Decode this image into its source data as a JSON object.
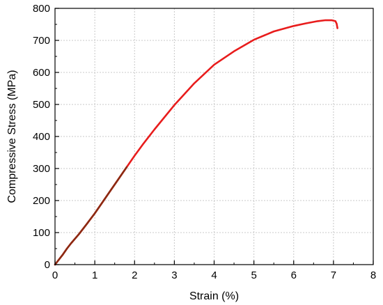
{
  "chart_data": {
    "type": "line",
    "title": "",
    "xlabel": "Strain (%)",
    "ylabel": "Compressive Stress (MPa)",
    "xlim": [
      0,
      8
    ],
    "ylim": [
      0,
      800
    ],
    "xticks": [
      "0",
      "1",
      "2",
      "3",
      "4",
      "5",
      "6",
      "7",
      "8"
    ],
    "yticks": [
      "0",
      "100",
      "200",
      "300",
      "400",
      "500",
      "600",
      "700",
      "800"
    ],
    "grid": true,
    "legend": "none",
    "series": [
      {
        "color": "#e81c1c",
        "x": [
          0,
          0.1,
          0.2,
          0.3,
          0.4,
          0.6,
          0.8,
          1.0,
          1.2,
          1.4,
          1.6,
          1.8,
          2.0,
          2.2,
          2.5,
          3.0,
          3.5,
          4.0,
          4.5,
          5.0,
          5.5,
          6.0,
          6.3,
          6.6,
          6.8,
          6.95,
          7.05,
          7.08,
          7.1
        ],
        "y": [
          0,
          16,
          32,
          50,
          66,
          95,
          127,
          160,
          196,
          232,
          268,
          304,
          340,
          374,
          422,
          498,
          566,
          624,
          666,
          702,
          728,
          745,
          753,
          760,
          763,
          763,
          760,
          752,
          738
        ]
      },
      {
        "color": "#8b2a12",
        "x": [
          0,
          0.1,
          0.2,
          0.3,
          0.4,
          0.6,
          0.8,
          1.0,
          1.2,
          1.4,
          1.6,
          1.8
        ],
        "y": [
          0,
          16,
          32,
          50,
          66,
          95,
          127,
          160,
          196,
          232,
          268,
          304
        ]
      }
    ]
  }
}
